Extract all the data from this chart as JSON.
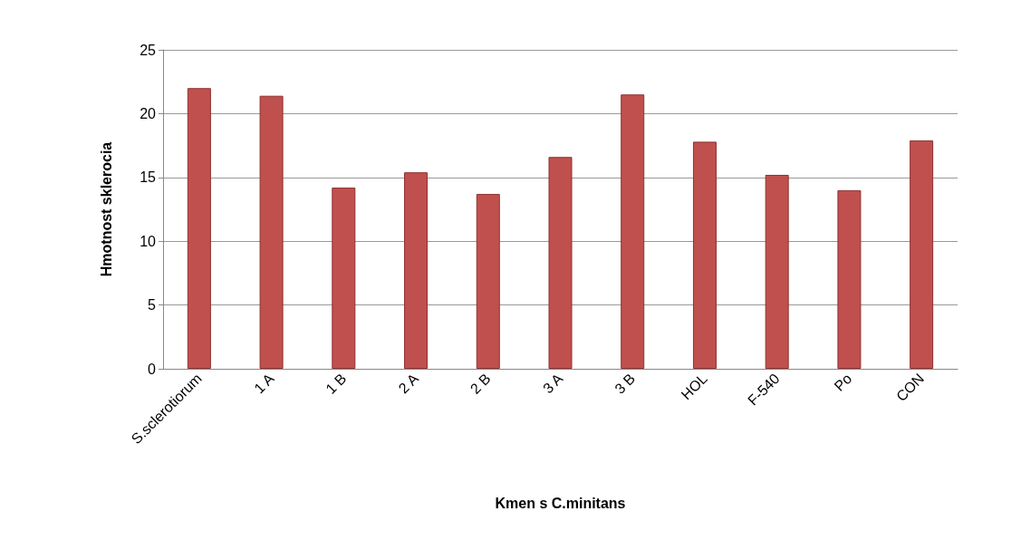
{
  "chart_data": {
    "type": "bar",
    "xlabel": "Kmen s C.minitans",
    "ylabel": "Hmotnost sklerocia",
    "categories": [
      "S.sclerotiorum",
      "1 A",
      "1 B",
      "2 A",
      "2 B",
      "3 A",
      "3 B",
      "HOL",
      "F-540",
      "Po",
      "CON"
    ],
    "values": [
      22,
      21.4,
      14.2,
      15.4,
      13.7,
      16.6,
      21.5,
      17.8,
      15.2,
      14,
      17.9
    ],
    "color": "#c0504d",
    "ylim": [
      0,
      25
    ],
    "yticks": [
      0,
      5,
      10,
      15,
      20,
      25
    ],
    "grid": "y"
  }
}
